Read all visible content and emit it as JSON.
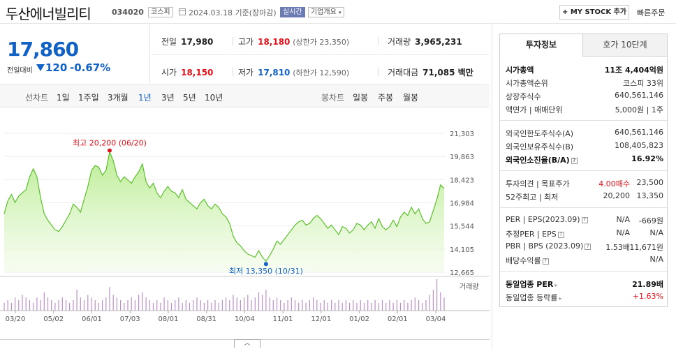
{
  "header": {
    "name": "두산에너빌리티",
    "code": "034020",
    "market": "코스피",
    "date": "2024.03.18 기준(장마감)",
    "live_chip": "실시간",
    "company_chip": "기업개요",
    "mystock_button": "+ MY STOCK 추가",
    "quick_order": "빠른주문"
  },
  "price": {
    "current": "17,860",
    "change_label": "전일대비",
    "change": "120",
    "change_pct": "-0.67%"
  },
  "summary": {
    "prev_close_label": "전일",
    "prev_close": "17,980",
    "high_label": "고가",
    "high": "18,180",
    "upper_limit": "(상한가 23,350)",
    "volume_label": "거래량",
    "volume": "3,965,231",
    "open_label": "시가",
    "open": "18,150",
    "low_label": "저가",
    "low": "17,810",
    "lower_limit": "(하한가 12,590)",
    "amount_label": "거래대금",
    "amount": "71,085 백만"
  },
  "tabs": {
    "line_chart": "선차트",
    "periods": [
      "1일",
      "1주일",
      "3개월",
      "1년",
      "3년",
      "5년",
      "10년"
    ],
    "active_period": "1년",
    "candle_chart": "봉차트",
    "candles": [
      "일봉",
      "주봉",
      "월봉"
    ]
  },
  "chart_data": {
    "type": "area",
    "y_ticks": [
      "21,303",
      "19,863",
      "18,423",
      "16,984",
      "15,544",
      "14,105",
      "12,665"
    ],
    "ylim": [
      12665,
      21303
    ],
    "x_ticks": [
      "03/20",
      "05/02",
      "06/01",
      "07/03",
      "08/01",
      "08/31",
      "10/04",
      "11/01",
      "12/01",
      "01/02",
      "02/01",
      "03/04"
    ],
    "max_annotation": "최고 20,200 (06/20)",
    "min_annotation": "최저 13,350 (10/31)",
    "volume_label": "거래량",
    "values": [
      16300,
      17100,
      17500,
      17000,
      17400,
      17600,
      17800,
      18600,
      19100,
      18600,
      17300,
      16300,
      15900,
      15600,
      15300,
      15200,
      15500,
      15900,
      16300,
      16900,
      16700,
      16400,
      17200,
      18000,
      19000,
      19300,
      19200,
      18700,
      19000,
      20150,
      19600,
      18700,
      18300,
      18600,
      18400,
      18200,
      18600,
      18900,
      19400,
      18300,
      17900,
      18200,
      17600,
      17300,
      17700,
      18000,
      17700,
      17600,
      17300,
      17800,
      17200,
      17000,
      16800,
      16600,
      17000,
      17200,
      16800,
      16600,
      16900,
      16700,
      16300,
      16100,
      15700,
      14900,
      14500,
      14300,
      14000,
      13800,
      13700,
      13600,
      14000,
      13600,
      13350,
      13700,
      14100,
      14600,
      14400,
      14700,
      15000,
      15300,
      15600,
      15800,
      15900,
      15600,
      15700,
      16000,
      16200,
      16000,
      15700,
      15400,
      15600,
      15300,
      15000,
      15500,
      15400,
      15100,
      15300,
      15700,
      15600,
      15300,
      15600,
      15800,
      15400,
      16000,
      15500,
      15300,
      15500,
      15900,
      15500,
      16100,
      16400,
      16200,
      16700,
      16300,
      16600,
      16000,
      15700,
      15800,
      16500,
      17200,
      18100,
      17860
    ],
    "volumes": [
      3,
      4,
      3,
      5,
      4,
      6,
      5,
      4,
      3,
      5,
      4,
      7,
      5,
      4,
      3,
      4,
      5,
      4,
      3,
      4,
      8,
      5,
      4,
      6,
      5,
      4,
      3,
      4,
      5,
      9,
      6,
      5,
      4,
      3,
      4,
      5,
      4,
      6,
      7,
      5,
      4,
      3,
      4,
      3,
      5,
      4,
      3,
      4,
      5,
      3,
      4,
      3,
      4,
      5,
      4,
      3,
      4,
      3,
      4,
      3,
      4,
      5,
      4,
      6,
      5,
      4,
      5,
      6,
      4,
      5,
      7,
      6,
      8,
      5,
      4,
      5,
      4,
      3,
      4,
      5,
      4,
      3,
      4,
      3,
      4,
      5,
      4,
      3,
      4,
      3,
      4,
      3,
      4,
      3,
      4,
      3,
      4,
      3,
      4,
      3,
      4,
      3,
      4,
      3,
      4,
      3,
      4,
      3,
      4,
      3,
      4,
      3,
      4,
      5,
      4,
      3,
      4,
      6,
      8,
      12,
      7,
      5
    ]
  },
  "side": {
    "tab_active": "투자정보",
    "tab_other": "호가 10단계",
    "rows": {
      "mcap_k": "시가총액",
      "mcap_v": "11조 4,404억원",
      "mcap_rank_k": "시가총액순위",
      "mcap_rank_v": "코스피 33위",
      "shares_k": "상장주식수",
      "shares_v": "640,561,146",
      "par_k": "액면가 | 매매단위",
      "par_v": "5,000원 | 1주",
      "foreign_limit_k": "외국인한도주식수(A)",
      "foreign_limit_v": "640,561,146",
      "foreign_hold_k": "외국인보유주식수(B)",
      "foreign_hold_v": "108,405,823",
      "foreign_ratio_k": "외국인소진율(B/A)",
      "foreign_ratio_v": "16.92%",
      "opinion_k": "투자의견 | 목표주가",
      "opinion_v": "4.00매수",
      "target_v": "23,500",
      "w52_k": "52주최고 | 최저",
      "w52_high": "20,200",
      "w52_low": "13,350",
      "per_k": "PER | EPS(2023.09)",
      "per_v": "N/A",
      "eps_v": "-669원",
      "est_per_k": "추정PER | EPS",
      "est_per_v": "N/A",
      "est_eps_v": "N/A",
      "pbr_k": "PBR | BPS (2023.09)",
      "pbr_v": "1.53배",
      "bps_v": "11,671원",
      "div_k": "배당수익률",
      "div_v": "N/A",
      "sector_per_k": "동일업종 PER",
      "sector_per_v": "21.89배",
      "sector_chg_k": "동일업종 등락률",
      "sector_chg_v": "+1.63%"
    }
  }
}
